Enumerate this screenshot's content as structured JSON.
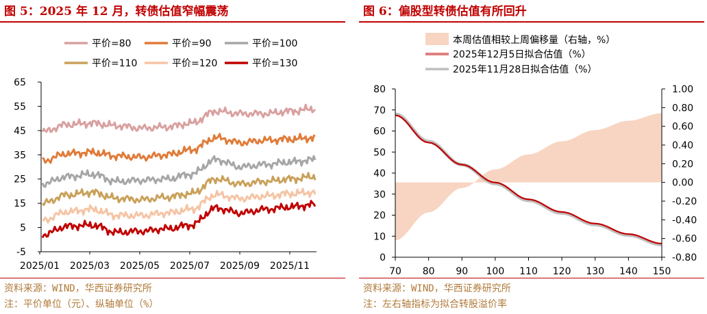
{
  "left": {
    "title": "图 5：2025 年 12 月，转债估值窄幅震荡",
    "source": "资料来源：WIND，华西证券研究所",
    "note": "注：平价单位（元）、纵轴单位（%）"
  },
  "right": {
    "title": "图 6：偏股型转债估值有所回升",
    "source": "资料来源：WIND，华西证券研究所",
    "note": "注：左右轴指标为拟合转股溢价率"
  },
  "colors": {
    "title_red": "#c00000",
    "source_text": "#b07a3a"
  },
  "chart_data": [
    {
      "type": "line",
      "x_ticks": [
        "2025/01",
        "2025/03",
        "2025/05",
        "2025/07",
        "2025/09",
        "2025/11"
      ],
      "y_ticks": [
        "65",
        "55",
        "45",
        "35",
        "25",
        "15",
        "5",
        "-5"
      ],
      "ylim": [
        -5,
        65
      ],
      "grid": false,
      "legend_position": "top",
      "x": [
        "2025/01",
        "2025/02",
        "2025/03",
        "2025/04",
        "2025/05",
        "2025/06",
        "2025/07",
        "2025/08",
        "2025/09",
        "2025/10",
        "2025/11",
        "2025/12"
      ],
      "series": [
        {
          "name": "平价=80",
          "color": "#d9a0a0",
          "values": [
            44.5,
            47.5,
            48,
            47,
            46,
            46.5,
            48,
            53,
            52,
            52,
            53,
            54
          ]
        },
        {
          "name": "平价=90",
          "color": "#e07b39",
          "values": [
            32.5,
            35.5,
            36,
            34.5,
            34,
            35,
            37,
            42,
            40,
            41,
            41.5,
            42
          ]
        },
        {
          "name": "平价=100",
          "color": "#a6a6a6",
          "values": [
            23,
            26,
            27,
            24,
            24.5,
            25,
            27,
            33,
            30,
            31,
            32,
            33
          ]
        },
        {
          "name": "平价=110",
          "color": "#c9a15a",
          "values": [
            15,
            18.5,
            19.5,
            17,
            16.5,
            17.5,
            19,
            25,
            23,
            24,
            25,
            26
          ]
        },
        {
          "name": "平价=120",
          "color": "#f5c4a4",
          "values": [
            8,
            11.5,
            12.5,
            10,
            10,
            11,
            12.5,
            18.5,
            17,
            18,
            19,
            19.5
          ]
        },
        {
          "name": "平价=130",
          "color": "#c00000",
          "values": [
            2,
            5.5,
            6,
            3,
            3.5,
            4.5,
            6,
            13,
            11,
            12.5,
            13.5,
            14.5
          ]
        }
      ]
    },
    {
      "type": "line",
      "x_ticks": [
        "70",
        "80",
        "90",
        "100",
        "110",
        "120",
        "130",
        "140",
        "150"
      ],
      "y_ticks_left": [
        "80",
        "70",
        "60",
        "50",
        "40",
        "30",
        "20",
        "10",
        "0"
      ],
      "y_ticks_right": [
        "1.00",
        "0.80",
        "0.60",
        "0.40",
        "0.20",
        "0.00",
        "-0.20",
        "-0.40",
        "-0.60",
        "-0.80"
      ],
      "xlim": [
        70,
        150
      ],
      "ylim_left": [
        0,
        80
      ],
      "ylim_right": [
        -0.8,
        1.0
      ],
      "grid": false,
      "legend_position": "top",
      "x": [
        70,
        80,
        90,
        100,
        110,
        120,
        130,
        140,
        150
      ],
      "series": [
        {
          "name": "本周估值相较上周偏移量（右轴，%）",
          "axis": "right",
          "kind": "area",
          "color": "#f8d5c2",
          "values": [
            -0.62,
            -0.32,
            -0.06,
            0.14,
            0.3,
            0.44,
            0.56,
            0.66,
            0.74
          ]
        },
        {
          "name": "2025年12月5日拟合估值（%）",
          "axis": "left",
          "kind": "line",
          "color": "#c00000",
          "values": [
            67.5,
            54.5,
            44,
            35.5,
            27.5,
            21.5,
            16,
            11,
            6.5
          ]
        },
        {
          "name": "2025年11月28日拟合估值（%）",
          "axis": "left",
          "kind": "line",
          "color": "#bfbfbf",
          "values": [
            68,
            55,
            44,
            35,
            27,
            21,
            15.5,
            10.5,
            6
          ]
        }
      ]
    }
  ]
}
